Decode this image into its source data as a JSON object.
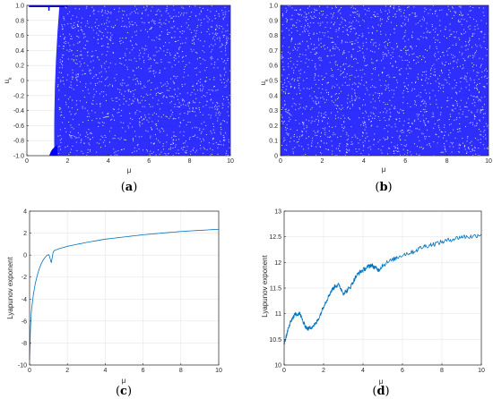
{
  "colors": {
    "scatter": "#0000ff",
    "line": "#0072bd",
    "axis": "#262626",
    "grid": "#e6e6e6"
  },
  "chart_data": [
    {
      "id": "a",
      "type": "scatter",
      "panel_label": "(a)",
      "xlabel": "μ",
      "ylabel": "u_k",
      "ylabel_main": "u",
      "ylabel_sub": "k",
      "xlim": [
        0,
        10
      ],
      "ylim": [
        -1,
        1
      ],
      "xticks": [
        "0",
        "2",
        "4",
        "6",
        "8",
        "10"
      ],
      "yticks": [
        "-1.0",
        "-0.8",
        "-0.6",
        "-0.4",
        "-0.2",
        "0",
        "0.2",
        "0.4",
        "0.6",
        "0.8",
        "1.0"
      ],
      "grid": true,
      "description_regions": {
        "dense_band_y": [
          -1,
          1
        ],
        "chaos_onset_mu": 1.2
      }
    },
    {
      "id": "b",
      "type": "scatter",
      "panel_label": "(b)",
      "xlabel": "μ",
      "ylabel": "u_k",
      "ylabel_main": "u",
      "ylabel_sub": "k",
      "xlim": [
        0,
        10
      ],
      "ylim": [
        0,
        1
      ],
      "xticks": [
        "0",
        "2",
        "4",
        "6",
        "8",
        "10"
      ],
      "yticks": [
        "0",
        "0.1",
        "0.2",
        "0.3",
        "0.4",
        "0.5",
        "0.6",
        "0.7",
        "0.8",
        "0.9",
        "1.0"
      ],
      "grid": true
    },
    {
      "id": "c",
      "type": "line",
      "panel_label": "(c)",
      "xlabel": "μ",
      "ylabel": "Lyapunov exponent",
      "xlim": [
        0,
        10
      ],
      "ylim": [
        -10,
        4
      ],
      "xticks": [
        "0",
        "2",
        "4",
        "6",
        "8",
        "10"
      ],
      "yticks": [
        "-10",
        "-8",
        "-6",
        "-4",
        "-2",
        "0",
        "2",
        "4"
      ],
      "grid": true,
      "series": [
        {
          "x": [
            0.0,
            0.05,
            0.1,
            0.2,
            0.3,
            0.4,
            0.5,
            0.6,
            0.7,
            0.8,
            0.9,
            1.0,
            1.05,
            1.1,
            1.15,
            1.2,
            1.25,
            1.3,
            1.5,
            2.0,
            3.0,
            4.0,
            5.0,
            6.0,
            7.0,
            8.0,
            9.0,
            10.0
          ],
          "values": [
            -9.5,
            -6.5,
            -5.0,
            -3.6,
            -2.6,
            -1.9,
            -1.3,
            -0.85,
            -0.5,
            -0.25,
            -0.05,
            0.05,
            -0.1,
            -0.4,
            -0.7,
            -0.2,
            0.3,
            0.4,
            0.55,
            0.8,
            1.15,
            1.45,
            1.65,
            1.85,
            2.0,
            2.15,
            2.25,
            2.35
          ]
        }
      ]
    },
    {
      "id": "d",
      "type": "line",
      "panel_label": "(d)",
      "xlabel": "μ",
      "ylabel": "Lyapunov exponent",
      "xlim": [
        0,
        10
      ],
      "ylim": [
        10,
        13
      ],
      "xticks": [
        "0",
        "2",
        "4",
        "6",
        "8",
        "10"
      ],
      "yticks": [
        "10",
        "10.5",
        "11",
        "11.5",
        "12",
        "12.5",
        "13"
      ],
      "grid": true,
      "series": [
        {
          "x": [
            0.0,
            0.1,
            0.2,
            0.4,
            0.6,
            0.8,
            1.0,
            1.2,
            1.4,
            1.6,
            1.8,
            2.0,
            2.2,
            2.4,
            2.6,
            2.8,
            3.0,
            3.2,
            3.4,
            3.6,
            3.8,
            4.0,
            4.2,
            4.4,
            4.6,
            4.8,
            5.0,
            5.5,
            6.0,
            6.5,
            7.0,
            7.5,
            8.0,
            8.5,
            9.0,
            9.5,
            10.0
          ],
          "values": [
            10.4,
            10.55,
            10.7,
            10.9,
            11.0,
            11.0,
            10.8,
            10.7,
            10.75,
            10.8,
            10.95,
            11.15,
            11.3,
            11.45,
            11.55,
            11.55,
            11.4,
            11.45,
            11.55,
            11.7,
            11.8,
            11.85,
            11.9,
            11.95,
            11.9,
            11.85,
            11.95,
            12.05,
            12.15,
            12.2,
            12.3,
            12.35,
            12.4,
            12.45,
            12.5,
            12.5,
            12.55
          ]
        }
      ]
    }
  ]
}
